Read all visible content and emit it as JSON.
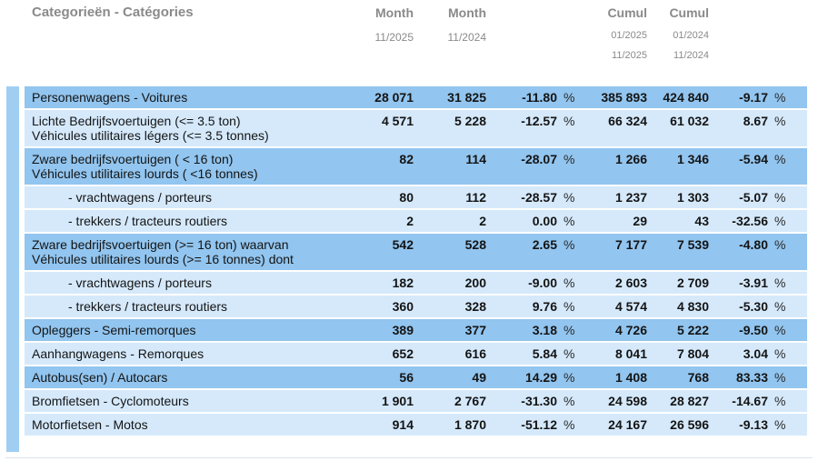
{
  "colors": {
    "dark_row": "#92c5ef",
    "light_row": "#d5e9fb",
    "accent_bar": "#a0cef2",
    "header_text": "#8a8a8a",
    "body_text": "#141414"
  },
  "header": {
    "title": "Categorieën - Catégories",
    "columns": [
      {
        "label": "Month",
        "sub": [
          "11/2025"
        ]
      },
      {
        "label": "Month",
        "sub": [
          "11/2024"
        ]
      },
      {
        "label": "Cumul",
        "sub": [
          "01/2025",
          "11/2025"
        ]
      },
      {
        "label": "Cumul",
        "sub": [
          "01/2024",
          "11/2024"
        ]
      }
    ]
  },
  "table": {
    "percent_symbol": "%",
    "rows": [
      {
        "lines": [
          "Personenwagens - Voitures"
        ],
        "shade": "dark",
        "indent": false,
        "month_cur": "28 071",
        "month_prev": "31 825",
        "month_pct": "-11.80",
        "cumul_cur": "385 893",
        "cumul_prev": "424 840",
        "cumul_pct": "-9.17"
      },
      {
        "lines": [
          "Lichte Bedrijfsvoertuigen (<= 3.5 ton)",
          "Véhicules utilitaires légers (<= 3.5 tonnes)"
        ],
        "shade": "light",
        "indent": false,
        "month_cur": "4 571",
        "month_prev": "5 228",
        "month_pct": "-12.57",
        "cumul_cur": "66 324",
        "cumul_prev": "61 032",
        "cumul_pct": "8.67"
      },
      {
        "lines": [
          "Zware bedrijfsvoertuigen ( < 16 ton)",
          "Véhicules utilitaires lourds ( <16 tonnes)"
        ],
        "shade": "dark",
        "indent": false,
        "month_cur": "82",
        "month_prev": "114",
        "month_pct": "-28.07",
        "cumul_cur": "1 266",
        "cumul_prev": "1 346",
        "cumul_pct": "-5.94"
      },
      {
        "lines": [
          "- vrachtwagens / porteurs"
        ],
        "shade": "light",
        "indent": true,
        "month_cur": "80",
        "month_prev": "112",
        "month_pct": "-28.57",
        "cumul_cur": "1 237",
        "cumul_prev": "1 303",
        "cumul_pct": "-5.07"
      },
      {
        "lines": [
          "- trekkers / tracteurs routiers"
        ],
        "shade": "light",
        "indent": true,
        "month_cur": "2",
        "month_prev": "2",
        "month_pct": "0.00",
        "cumul_cur": "29",
        "cumul_prev": "43",
        "cumul_pct": "-32.56"
      },
      {
        "lines": [
          "Zware bedrijfsvoertuigen (>= 16 ton) waarvan",
          "Véhicules utilitaires lourds (>= 16 tonnes) dont"
        ],
        "shade": "dark",
        "indent": false,
        "month_cur": "542",
        "month_prev": "528",
        "month_pct": "2.65",
        "cumul_cur": "7 177",
        "cumul_prev": "7 539",
        "cumul_pct": "-4.80"
      },
      {
        "lines": [
          "- vrachtwagens / porteurs"
        ],
        "shade": "light",
        "indent": true,
        "month_cur": "182",
        "month_prev": "200",
        "month_pct": "-9.00",
        "cumul_cur": "2 603",
        "cumul_prev": "2 709",
        "cumul_pct": "-3.91"
      },
      {
        "lines": [
          "- trekkers / tracteurs routiers"
        ],
        "shade": "light",
        "indent": true,
        "month_cur": "360",
        "month_prev": "328",
        "month_pct": "9.76",
        "cumul_cur": "4 574",
        "cumul_prev": "4 830",
        "cumul_pct": "-5.30"
      },
      {
        "lines": [
          "Opleggers - Semi-remorques"
        ],
        "shade": "dark",
        "indent": false,
        "month_cur": "389",
        "month_prev": "377",
        "month_pct": "3.18",
        "cumul_cur": "4 726",
        "cumul_prev": "5 222",
        "cumul_pct": "-9.50"
      },
      {
        "lines": [
          "Aanhangwagens - Remorques"
        ],
        "shade": "light",
        "indent": false,
        "month_cur": "652",
        "month_prev": "616",
        "month_pct": "5.84",
        "cumul_cur": "8 041",
        "cumul_prev": "7 804",
        "cumul_pct": "3.04"
      },
      {
        "lines": [
          "Autobus(sen) / Autocars"
        ],
        "shade": "dark",
        "indent": false,
        "month_cur": "56",
        "month_prev": "49",
        "month_pct": "14.29",
        "cumul_cur": "1 408",
        "cumul_prev": "768",
        "cumul_pct": "83.33"
      },
      {
        "lines": [
          "Bromfietsen - Cyclomoteurs"
        ],
        "shade": "light",
        "indent": false,
        "month_cur": "1 901",
        "month_prev": "2 767",
        "month_pct": "-31.30",
        "cumul_cur": "24 598",
        "cumul_prev": "28 827",
        "cumul_pct": "-14.67"
      },
      {
        "lines": [
          "Motorfietsen - Motos"
        ],
        "shade": "light",
        "indent": false,
        "month_cur": "914",
        "month_prev": "1 870",
        "month_pct": "-51.12",
        "cumul_cur": "24 167",
        "cumul_prev": "26 596",
        "cumul_pct": "-9.13"
      }
    ]
  },
  "chart_data": {
    "type": "table",
    "title": "Categorieën - Catégories",
    "columns": [
      "Month 11/2025",
      "Month 11/2024",
      "Month % change",
      "Cumul 01/2025-11/2025",
      "Cumul 01/2024-11/2024",
      "Cumul % change"
    ],
    "rows": [
      {
        "category": "Personenwagens - Voitures",
        "values": [
          28071,
          31825,
          -11.8,
          385893,
          424840,
          -9.17
        ]
      },
      {
        "category": "Lichte Bedrijfsvoertuigen (<= 3.5 ton) / Véhicules utilitaires légers (<= 3.5 tonnes)",
        "values": [
          4571,
          5228,
          -12.57,
          66324,
          61032,
          8.67
        ]
      },
      {
        "category": "Zware bedrijfsvoertuigen ( < 16 ton) / Véhicules utilitaires lourds ( <16 tonnes)",
        "values": [
          82,
          114,
          -28.07,
          1266,
          1346,
          -5.94
        ]
      },
      {
        "category": "- vrachtwagens / porteurs (< 16 ton)",
        "values": [
          80,
          112,
          -28.57,
          1237,
          1303,
          -5.07
        ]
      },
      {
        "category": "- trekkers / tracteurs routiers (< 16 ton)",
        "values": [
          2,
          2,
          0.0,
          29,
          43,
          -32.56
        ]
      },
      {
        "category": "Zware bedrijfsvoertuigen (>= 16 ton) waarvan / Véhicules utilitaires lourds (>= 16 tonnes) dont",
        "values": [
          542,
          528,
          2.65,
          7177,
          7539,
          -4.8
        ]
      },
      {
        "category": "- vrachtwagens / porteurs (>= 16 ton)",
        "values": [
          182,
          200,
          -9.0,
          2603,
          2709,
          -3.91
        ]
      },
      {
        "category": "- trekkers / tracteurs routiers (>= 16 ton)",
        "values": [
          360,
          328,
          9.76,
          4574,
          4830,
          -5.3
        ]
      },
      {
        "category": "Opleggers - Semi-remorques",
        "values": [
          389,
          377,
          3.18,
          4726,
          5222,
          -9.5
        ]
      },
      {
        "category": "Aanhangwagens - Remorques",
        "values": [
          652,
          616,
          5.84,
          8041,
          7804,
          3.04
        ]
      },
      {
        "category": "Autobus(sen) / Autocars",
        "values": [
          56,
          49,
          14.29,
          1408,
          768,
          83.33
        ]
      },
      {
        "category": "Bromfietsen - Cyclomoteurs",
        "values": [
          1901,
          2767,
          -31.3,
          24598,
          28827,
          -14.67
        ]
      },
      {
        "category": "Motorfietsen - Motos",
        "values": [
          914,
          1870,
          -51.12,
          24167,
          26596,
          -9.13
        ]
      }
    ]
  }
}
